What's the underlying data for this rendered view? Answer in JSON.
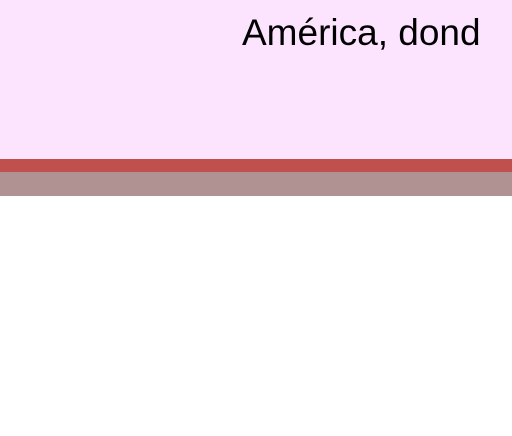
{
  "slide": {
    "header_text": "América, dond",
    "colors": {
      "header_background": "#fde4fe",
      "accent_stripe": "#c0504d",
      "secondary_stripe": "#b09293",
      "body_background": "#ffffff"
    }
  }
}
